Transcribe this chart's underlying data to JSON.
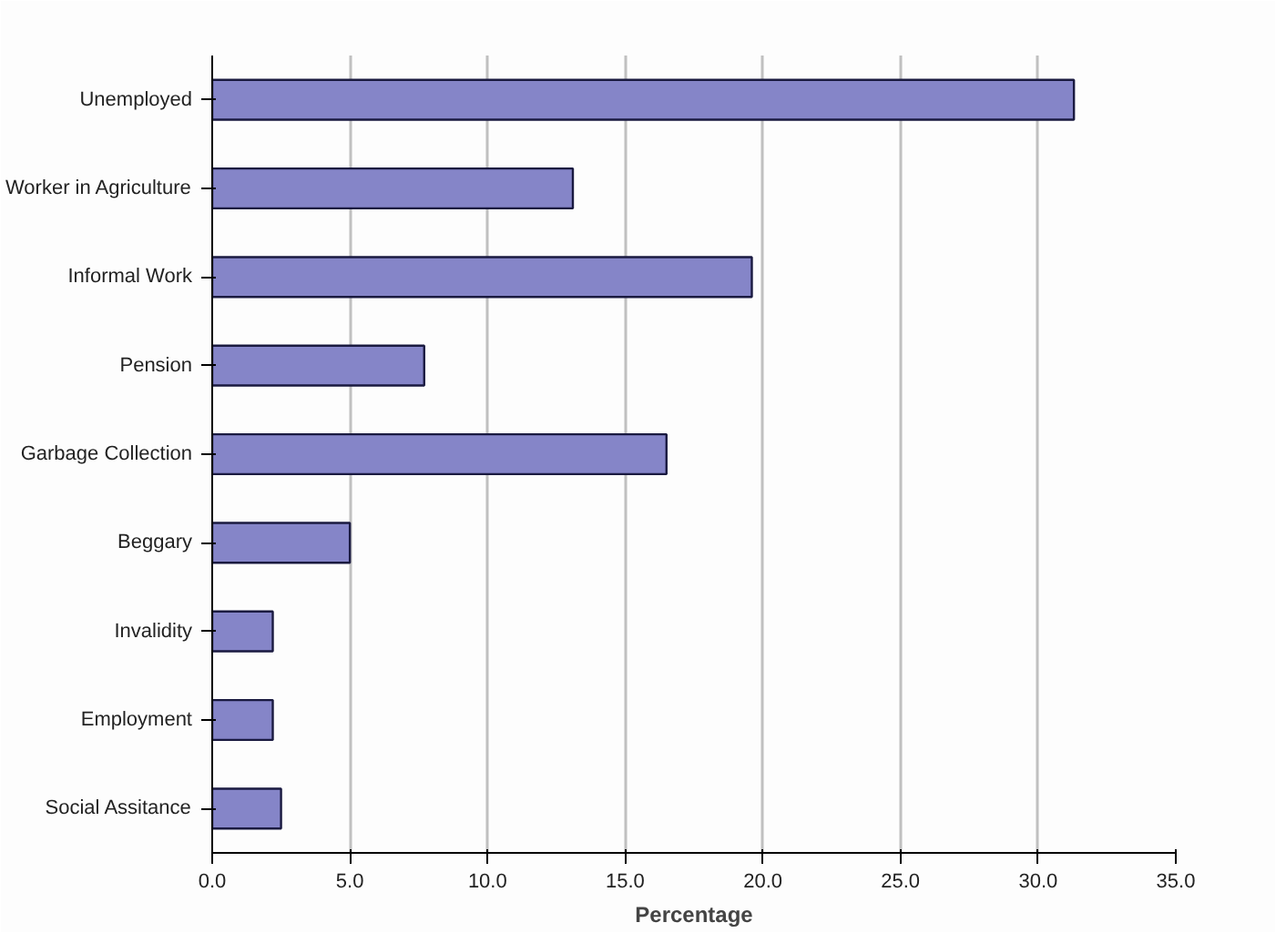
{
  "chart_data": {
    "type": "bar",
    "orientation": "horizontal",
    "xlabel": "Percentage",
    "categories": [
      "Unemployed",
      "Worker in Agriculture",
      "Informal Work",
      "Pension",
      "Garbage Collection",
      "Beggary",
      "Invalidity",
      "Employment",
      "Social Assitance"
    ],
    "values": [
      31.3,
      13.1,
      19.6,
      7.7,
      16.5,
      5.0,
      2.2,
      2.2,
      2.5
    ],
    "color": "#8585c8",
    "xlim": [
      0,
      35
    ],
    "xticks": [
      {
        "value": 0,
        "label": "0.0"
      },
      {
        "value": 5,
        "label": "5.0"
      },
      {
        "value": 10,
        "label": "10.0"
      },
      {
        "value": 15,
        "label": "15.0"
      },
      {
        "value": 20,
        "label": "20.0"
      },
      {
        "value": 25,
        "label": "25.0"
      },
      {
        "value": 30,
        "label": "30.0"
      },
      {
        "value": 35,
        "label": "35.0"
      }
    ],
    "grid": "x"
  }
}
